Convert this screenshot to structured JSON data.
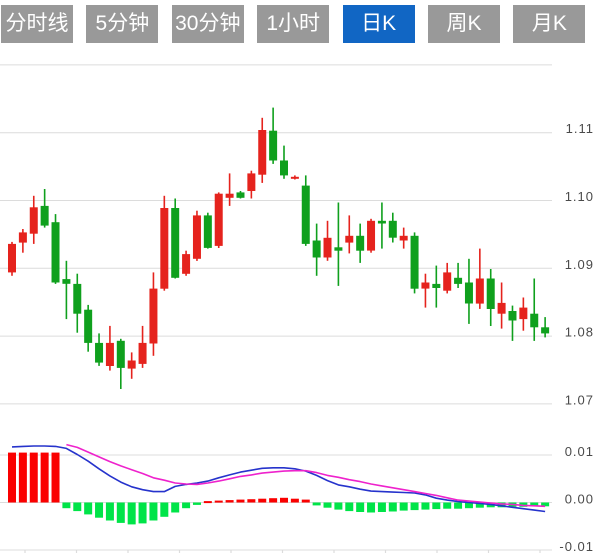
{
  "toolbar": {
    "tabs": [
      {
        "label": "分时线",
        "active": false
      },
      {
        "label": "5分钟",
        "active": false
      },
      {
        "label": "30分钟",
        "active": false
      },
      {
        "label": "1小时",
        "active": false
      },
      {
        "label": "日K",
        "active": true
      },
      {
        "label": "周K",
        "active": false
      },
      {
        "label": "月K",
        "active": false
      }
    ],
    "tab_bg": "#999999",
    "tab_active_bg": "#1166c4",
    "tab_text_color": "#ffffff"
  },
  "colors": {
    "background": "#ffffff",
    "up": "#e5231d",
    "down": "#0fa01d",
    "hist_up": "#fa0000",
    "hist_down": "#00e448",
    "dif_line": "#2633cc",
    "dea_line": "#ee22cc",
    "grid": "#dcdcdc",
    "axis_text": "#4a4a4a"
  },
  "chart_data": {
    "type": "candlestick_with_macd",
    "convention": "red=up, green=down (CN style)",
    "price_axis": {
      "ticks": [
        1.11,
        1.1,
        1.09,
        1.08,
        1.07
      ],
      "grid_values": [
        1.12,
        1.11,
        1.1,
        1.09,
        1.08,
        1.07
      ],
      "visible_range": [
        1.065,
        1.122
      ],
      "grid": true,
      "label_side": "right"
    },
    "macd_axis": {
      "ticks": [
        0.01,
        0.0,
        -0.01
      ],
      "label_side": "right"
    },
    "candle_format": [
      "open",
      "high",
      "low",
      "close"
    ],
    "candles": [
      [
        1.0894,
        1.0939,
        1.0889,
        1.0936
      ],
      [
        1.0938,
        1.0958,
        1.0923,
        1.0953
      ],
      [
        1.0951,
        1.1007,
        1.0936,
        1.099
      ],
      [
        1.0992,
        1.1017,
        1.096,
        1.0963
      ],
      [
        1.0968,
        1.098,
        1.0877,
        1.0879
      ],
      [
        1.0884,
        1.0911,
        1.0825,
        1.0877
      ],
      [
        1.0877,
        1.0892,
        1.0805,
        1.0833
      ],
      [
        1.0839,
        1.0846,
        1.0777,
        1.079
      ],
      [
        1.079,
        1.0804,
        1.0756,
        1.0761
      ],
      [
        1.0756,
        1.0815,
        1.0749,
        1.079
      ],
      [
        1.0793,
        1.0796,
        1.0722,
        1.0753
      ],
      [
        1.0752,
        1.0776,
        1.0737,
        1.0764
      ],
      [
        1.0759,
        1.0815,
        1.0753,
        1.079
      ],
      [
        1.0789,
        1.0894,
        1.0771,
        1.087
      ],
      [
        1.087,
        1.1007,
        1.0867,
        1.0989
      ],
      [
        1.0989,
        1.1003,
        1.0885,
        1.0886
      ],
      [
        1.0892,
        1.0926,
        1.0889,
        1.0921
      ],
      [
        1.0914,
        1.0985,
        1.0911,
        1.0978
      ],
      [
        1.0978,
        1.0982,
        1.0929,
        1.093
      ],
      [
        1.0933,
        1.1012,
        1.093,
        1.101
      ],
      [
        1.1004,
        1.104,
        1.0992,
        1.101
      ],
      [
        1.1012,
        1.1014,
        1.1003,
        1.1004
      ],
      [
        1.1014,
        1.1044,
        1.1003,
        1.104
      ],
      [
        1.1038,
        1.1122,
        1.1026,
        1.1104
      ],
      [
        1.1103,
        1.1137,
        1.1054,
        1.1059
      ],
      [
        1.1059,
        1.1081,
        1.1032,
        1.1037
      ],
      [
        1.1032,
        1.1037,
        1.1031,
        1.1035
      ],
      [
        1.1022,
        1.1037,
        1.0933,
        1.0936
      ],
      [
        1.0941,
        1.0966,
        1.0889,
        1.0916
      ],
      [
        1.0916,
        1.097,
        1.0911,
        1.0945
      ],
      [
        1.0931,
        1.0997,
        1.0874,
        1.0926
      ],
      [
        1.0938,
        1.0978,
        1.0922,
        1.0948
      ],
      [
        1.0948,
        1.0966,
        1.0908,
        1.0926
      ],
      [
        1.0926,
        1.0973,
        1.0923,
        1.097
      ],
      [
        1.097,
        1.0997,
        1.0929,
        1.0966
      ],
      [
        1.097,
        1.0982,
        1.0938,
        1.0945
      ],
      [
        1.0941,
        1.096,
        1.0929,
        1.0948
      ],
      [
        1.0948,
        1.0953,
        1.0863,
        1.087
      ],
      [
        1.087,
        1.0892,
        1.0842,
        1.0879
      ],
      [
        1.0877,
        1.0904,
        1.0842,
        1.0871
      ],
      [
        1.0867,
        1.0908,
        1.0863,
        1.0894
      ],
      [
        1.0886,
        1.0908,
        1.0871,
        1.0877
      ],
      [
        1.0879,
        1.0914,
        1.0818,
        1.0848
      ],
      [
        1.0848,
        1.0929,
        1.084,
        1.0885
      ],
      [
        1.0885,
        1.0899,
        1.0815,
        1.084
      ],
      [
        1.0833,
        1.0879,
        1.0811,
        1.0849
      ],
      [
        1.0837,
        1.0845,
        1.0793,
        1.0823
      ],
      [
        1.0825,
        1.0857,
        1.0808,
        1.0842
      ],
      [
        1.0833,
        1.0885,
        1.0793,
        1.0813
      ],
      [
        1.0813,
        1.0828,
        1.0798,
        1.0804
      ]
    ],
    "macd": {
      "histogram": [
        0.0105,
        0.0105,
        0.0105,
        0.0105,
        0.0105,
        -0.0012,
        -0.0018,
        -0.0025,
        -0.0032,
        -0.0038,
        -0.0043,
        -0.0046,
        -0.0044,
        -0.0038,
        -0.003,
        -0.0021,
        -0.0012,
        -0.0005,
        0.0003,
        0.0004,
        0.0005,
        0.0006,
        0.0007,
        0.0008,
        0.0009,
        0.001,
        0.0008,
        0.0006,
        -0.0006,
        -0.0011,
        -0.0015,
        -0.0018,
        -0.002,
        -0.0021,
        -0.002,
        -0.0019,
        -0.0017,
        -0.0016,
        -0.0015,
        -0.0014,
        -0.0013,
        -0.0013,
        -0.0012,
        -0.0011,
        -0.001,
        -0.001,
        -0.0009,
        -0.0009,
        -0.0008,
        -0.0008
      ],
      "dif": {
        "start_index": 0,
        "values": [
          0.0117,
          0.0118,
          0.0119,
          0.0119,
          0.0118,
          0.0114,
          0.0101,
          0.0087,
          0.0071,
          0.0056,
          0.0043,
          0.0033,
          0.0027,
          0.0023,
          0.0023,
          0.0034,
          0.0038,
          0.0041,
          0.0045,
          0.0052,
          0.0058,
          0.0064,
          0.0068,
          0.0072,
          0.0073,
          0.0073,
          0.0071,
          0.0066,
          0.0057,
          0.0046,
          0.0037,
          0.0033,
          0.0028,
          0.0024,
          0.0023,
          0.0022,
          0.0021,
          0.002,
          0.0016,
          0.0009,
          0.0005,
          0.0002,
          0.0,
          -0.0002,
          -0.0004,
          -0.0007,
          -0.001,
          -0.0013,
          -0.0016,
          -0.0019
        ]
      },
      "dea": {
        "start_index": 5,
        "values": [
          0.0122,
          0.0116,
          0.0106,
          0.0096,
          0.0086,
          0.0077,
          0.0069,
          0.0061,
          0.0052,
          0.0047,
          0.0041,
          0.0039,
          0.0038,
          0.0041,
          0.0045,
          0.005,
          0.0055,
          0.0058,
          0.0062,
          0.0064,
          0.0066,
          0.0067,
          0.0067,
          0.0063,
          0.0057,
          0.0053,
          0.0048,
          0.0044,
          0.0039,
          0.0035,
          0.0031,
          0.0027,
          0.0023,
          0.0019,
          0.0015,
          0.001,
          0.0005,
          0.0003,
          0.0001,
          -0.0001,
          -0.0003,
          -0.0004,
          -0.0006,
          -0.0007,
          -0.0008
        ]
      }
    }
  }
}
